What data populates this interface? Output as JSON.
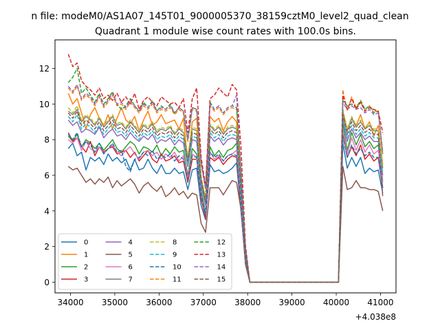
{
  "figure": {
    "suptitle": "n file: modeM0/AS1A07_145T01_9000005370_38159cztM0_level2_quad_clean",
    "offset_label": "+4.038e8"
  },
  "chart_data": {
    "type": "line",
    "title": "Quadrant 1 module wise count rates with 100.0s bins.",
    "xlabel": "",
    "ylabel": "",
    "xlim": [
      33650,
      41350
    ],
    "ylim": [
      -0.6,
      13.6
    ],
    "x_offset": "+4.038e8",
    "xticks": [
      34000,
      35000,
      36000,
      37000,
      38000,
      39000,
      40000,
      41000
    ],
    "xtick_labels": [
      "34000",
      "35000",
      "36000",
      "37000",
      "38000",
      "39000",
      "40000",
      "41000"
    ],
    "yticks": [
      0,
      2,
      4,
      6,
      8,
      10,
      12
    ],
    "ytick_labels": [
      "0",
      "2",
      "4",
      "6",
      "8",
      "10",
      "12"
    ],
    "grid": false,
    "legend": {
      "placement": "lower-left",
      "columns": 4
    },
    "x": [
      33950,
      34050,
      34150,
      34250,
      34350,
      34450,
      34550,
      34650,
      34750,
      34850,
      34950,
      35050,
      35150,
      35250,
      35350,
      35450,
      35550,
      35650,
      35750,
      35850,
      35950,
      36050,
      36150,
      36250,
      36350,
      36450,
      36550,
      36650,
      36750,
      36850,
      36950,
      37050,
      37150,
      37250,
      37350,
      37450,
      37550,
      37650,
      37750,
      37850,
      37950,
      38050,
      40050,
      40150,
      40250,
      40350,
      40450,
      40550,
      40650,
      40750,
      40850,
      40950,
      41050
    ],
    "series": [
      {
        "name": "0",
        "color": "#1f77b4",
        "dash": "solid",
        "values": [
          7.5,
          7.8,
          7.1,
          7.3,
          6.3,
          7.0,
          6.8,
          7.0,
          6.6,
          7.2,
          6.8,
          7.0,
          6.7,
          6.9,
          6.3,
          6.9,
          6.3,
          6.4,
          6.9,
          6.4,
          6.1,
          6.6,
          6.1,
          6.1,
          6.4,
          6.1,
          6.2,
          5.2,
          6.3,
          6.4,
          4.3,
          3.5,
          6.6,
          6.2,
          6.3,
          6.1,
          6.2,
          6.4,
          6.7,
          4.0,
          1.2,
          0,
          0,
          7.8,
          6.4,
          7.0,
          6.5,
          7.0,
          6.1,
          6.4,
          6.2,
          6.3,
          5.0
        ]
      },
      {
        "name": "1",
        "color": "#ff7f0e",
        "dash": "solid",
        "values": [
          10.6,
          10.0,
          10.3,
          9.5,
          8.6,
          9.4,
          9.8,
          9.2,
          8.8,
          9.4,
          8.6,
          9.2,
          9.8,
          9.1,
          8.9,
          9.3,
          8.5,
          9.1,
          9.6,
          8.8,
          9.0,
          9.4,
          8.9,
          9.0,
          9.1,
          8.6,
          9.2,
          6.8,
          9.0,
          9.2,
          5.8,
          4.7,
          9.3,
          9.0,
          9.2,
          8.5,
          9.0,
          9.3,
          9.0,
          5.8,
          1.8,
          0,
          0,
          9.4,
          8.5,
          9.2,
          8.8,
          9.4,
          8.6,
          9.0,
          8.2,
          8.8,
          6.6
        ]
      },
      {
        "name": "2",
        "color": "#2ca02c",
        "dash": "solid",
        "values": [
          8.2,
          7.9,
          8.3,
          7.6,
          8.0,
          7.8,
          7.5,
          7.8,
          7.4,
          7.7,
          8.0,
          7.5,
          7.3,
          7.6,
          7.9,
          7.7,
          7.2,
          7.6,
          7.5,
          7.3,
          7.7,
          7.1,
          7.5,
          7.2,
          7.6,
          7.3,
          7.4,
          6.0,
          7.5,
          7.2,
          5.1,
          3.9,
          7.6,
          7.1,
          7.4,
          7.0,
          7.4,
          7.5,
          7.8,
          4.7,
          1.4,
          0,
          0,
          8.9,
          7.4,
          8.4,
          7.7,
          8.3,
          7.6,
          7.9,
          7.5,
          7.7,
          5.7
        ]
      },
      {
        "name": "3",
        "color": "#d62728",
        "dash": "solid",
        "values": [
          8.4,
          7.9,
          8.1,
          7.6,
          7.3,
          7.9,
          7.1,
          7.6,
          7.3,
          7.5,
          7.6,
          7.2,
          7.3,
          7.4,
          7.0,
          7.3,
          6.8,
          7.1,
          7.4,
          6.9,
          6.7,
          7.2,
          6.8,
          6.9,
          7.1,
          6.7,
          6.8,
          5.6,
          6.9,
          6.9,
          4.7,
          3.6,
          7.0,
          6.8,
          7.0,
          6.6,
          6.9,
          7.1,
          7.0,
          4.2,
          1.3,
          0,
          0,
          8.4,
          7.0,
          7.6,
          7.1,
          7.7,
          6.9,
          7.2,
          6.8,
          7.0,
          5.3
        ]
      },
      {
        "name": "4",
        "color": "#9467bd",
        "dash": "solid",
        "values": [
          9.1,
          8.8,
          9.0,
          8.4,
          8.6,
          8.5,
          8.3,
          8.7,
          8.1,
          8.4,
          8.6,
          8.2,
          8.3,
          8.0,
          8.4,
          8.1,
          7.9,
          8.2,
          8.0,
          8.3,
          7.8,
          8.0,
          7.9,
          8.1,
          7.7,
          8.0,
          7.8,
          6.5,
          8.0,
          7.9,
          5.4,
          4.3,
          8.2,
          7.9,
          8.1,
          7.7,
          8.0,
          8.1,
          8.0,
          5.0,
          1.5,
          0,
          0,
          9.1,
          7.9,
          8.6,
          8.1,
          8.4,
          8.0,
          8.2,
          7.9,
          7.9,
          6.0
        ]
      },
      {
        "name": "5",
        "color": "#8c564b",
        "dash": "solid",
        "values": [
          6.5,
          6.3,
          6.4,
          6.0,
          5.6,
          5.8,
          5.5,
          5.8,
          5.6,
          5.9,
          5.3,
          5.7,
          5.4,
          5.6,
          5.8,
          5.5,
          5.0,
          5.4,
          5.6,
          5.3,
          5.1,
          5.4,
          4.8,
          5.0,
          5.3,
          4.9,
          5.1,
          4.7,
          5.0,
          4.9,
          3.3,
          2.8,
          5.3,
          5.3,
          5.3,
          4.9,
          5.3,
          5.7,
          5.6,
          4.1,
          1.0,
          0,
          0,
          6.5,
          5.2,
          5.3,
          5.7,
          5.3,
          5.3,
          5.2,
          5.2,
          5.1,
          4.0
        ]
      },
      {
        "name": "6",
        "color": "#e377c2",
        "dash": "solid",
        "values": [
          8.0,
          7.8,
          8.1,
          7.4,
          7.9,
          7.5,
          7.3,
          7.6,
          7.2,
          7.5,
          7.7,
          7.3,
          7.1,
          7.4,
          7.6,
          7.2,
          6.9,
          7.3,
          7.4,
          7.1,
          7.3,
          6.9,
          7.2,
          7.0,
          7.3,
          6.8,
          7.1,
          5.9,
          7.2,
          7.0,
          4.9,
          3.8,
          7.3,
          6.9,
          7.1,
          6.8,
          7.1,
          7.2,
          7.4,
          4.5,
          1.3,
          0,
          0,
          8.6,
          7.2,
          8.1,
          7.4,
          8.0,
          7.3,
          7.7,
          7.2,
          7.4,
          5.6
        ]
      },
      {
        "name": "7",
        "color": "#7f7f7f",
        "dash": "solid",
        "values": [
          9.6,
          9.4,
          9.7,
          9.0,
          9.3,
          9.1,
          8.8,
          9.2,
          8.7,
          9.0,
          9.3,
          8.8,
          8.9,
          8.6,
          9.0,
          8.7,
          8.4,
          8.8,
          8.6,
          8.9,
          8.4,
          8.6,
          8.5,
          8.7,
          8.3,
          8.6,
          8.4,
          7.0,
          8.6,
          8.5,
          5.8,
          4.6,
          8.8,
          8.5,
          8.7,
          8.3,
          8.6,
          8.7,
          8.6,
          5.4,
          1.6,
          0,
          0,
          9.6,
          8.5,
          9.2,
          8.7,
          9.0,
          8.6,
          8.8,
          8.5,
          8.5,
          6.4
        ]
      },
      {
        "name": "8",
        "color": "#bcbd22",
        "dash": "dashed",
        "values": [
          9.8,
          9.5,
          9.9,
          9.1,
          9.4,
          9.2,
          8.9,
          9.3,
          8.8,
          9.1,
          9.4,
          8.9,
          9.0,
          8.7,
          9.1,
          8.8,
          8.5,
          8.9,
          8.7,
          9.0,
          8.5,
          8.7,
          8.6,
          8.8,
          8.4,
          8.7,
          8.5,
          7.1,
          8.7,
          8.6,
          5.9,
          4.7,
          8.9,
          8.6,
          8.8,
          8.4,
          8.7,
          8.8,
          8.7,
          5.5,
          1.6,
          0,
          0,
          9.7,
          8.6,
          9.3,
          8.8,
          9.1,
          8.7,
          8.9,
          8.6,
          8.6,
          6.5
        ]
      },
      {
        "name": "9",
        "color": "#17becf",
        "dash": "dashed",
        "values": [
          9.3,
          9.0,
          9.4,
          8.6,
          8.9,
          8.7,
          8.4,
          8.8,
          8.3,
          8.6,
          8.9,
          8.4,
          8.5,
          8.2,
          8.6,
          8.3,
          8.0,
          8.4,
          8.2,
          8.5,
          8.0,
          8.2,
          8.1,
          8.3,
          7.9,
          8.2,
          8.0,
          6.6,
          8.2,
          8.1,
          5.6,
          4.4,
          8.4,
          8.1,
          8.3,
          7.9,
          8.2,
          8.3,
          8.2,
          5.2,
          1.5,
          0,
          0,
          9.2,
          8.1,
          8.8,
          8.3,
          8.6,
          8.2,
          8.4,
          8.1,
          8.1,
          6.1
        ]
      },
      {
        "name": "10",
        "color": "#1f77b4",
        "dash": "dashed",
        "values": [
          8.3,
          8.0,
          8.4,
          7.6,
          7.9,
          7.7,
          7.3,
          7.8,
          7.2,
          7.5,
          7.8,
          7.3,
          7.4,
          6.5,
          6.2,
          6.9,
          7.0,
          7.3,
          7.1,
          7.4,
          6.9,
          7.1,
          7.0,
          7.2,
          6.8,
          7.1,
          6.9,
          5.8,
          7.1,
          7.0,
          4.9,
          3.8,
          7.3,
          7.0,
          7.2,
          6.8,
          7.1,
          7.2,
          7.1,
          4.5,
          1.3,
          0,
          0,
          8.2,
          7.0,
          7.7,
          7.2,
          7.5,
          7.1,
          7.3,
          7.0,
          7.0,
          5.3
        ]
      },
      {
        "name": "11",
        "color": "#ff7f0e",
        "dash": "dashed",
        "values": [
          10.9,
          10.6,
          11.0,
          10.2,
          10.5,
          10.3,
          9.9,
          10.4,
          9.8,
          10.1,
          10.5,
          9.9,
          10.0,
          9.7,
          10.1,
          9.8,
          9.5,
          9.9,
          9.7,
          10.0,
          9.5,
          9.7,
          9.6,
          9.8,
          9.4,
          9.7,
          9.5,
          7.9,
          9.7,
          9.6,
          6.6,
          5.2,
          9.9,
          9.6,
          9.8,
          9.4,
          9.7,
          9.8,
          9.7,
          6.1,
          1.8,
          0,
          0,
          10.8,
          9.6,
          10.4,
          9.8,
          10.1,
          9.7,
          9.9,
          9.6,
          9.6,
          7.2
        ]
      },
      {
        "name": "12",
        "color": "#2ca02c",
        "dash": "dashed",
        "values": [
          11.2,
          11.5,
          12.0,
          10.6,
          10.9,
          10.5,
          10.1,
          10.6,
          10.0,
          10.3,
          10.7,
          10.0,
          9.7,
          9.9,
          10.3,
          9.9,
          9.6,
          10.1,
          9.8,
          10.2,
          9.6,
          9.9,
          9.7,
          10.0,
          9.5,
          9.8,
          9.6,
          8.0,
          9.8,
          9.7,
          6.8,
          5.3,
          10.1,
          9.7,
          9.9,
          9.5,
          9.8,
          9.9,
          9.8,
          6.2,
          1.9,
          0,
          0,
          10.2,
          9.9,
          10.0,
          9.8,
          10.2,
          9.7,
          9.9,
          9.5,
          9.6,
          7.3
        ]
      },
      {
        "name": "13",
        "color": "#d62728",
        "dash": "dashed",
        "values": [
          12.8,
          12.1,
          12.3,
          11.3,
          11.0,
          10.8,
          10.5,
          10.9,
          10.3,
          10.5,
          10.2,
          10.6,
          10.1,
          10.4,
          10.0,
          10.6,
          9.7,
          10.2,
          10.4,
          10.1,
          9.9,
          10.4,
          10.2,
          10.0,
          10.1,
          9.8,
          10.3,
          8.4,
          10.3,
          10.9,
          7.0,
          5.4,
          10.3,
          10.5,
          10.9,
          10.6,
          10.4,
          11.1,
          10.8,
          7.6,
          2.1,
          0,
          0,
          10.5,
          9.7,
          10.3,
          9.7,
          10.1,
          9.6,
          9.8,
          9.7,
          9.6,
          8.4
        ]
      },
      {
        "name": "14",
        "color": "#9467bd",
        "dash": "dashed",
        "values": [
          11.0,
          10.7,
          11.1,
          10.3,
          10.6,
          10.4,
          10.0,
          10.5,
          9.9,
          10.2,
          10.6,
          10.0,
          10.1,
          9.8,
          10.2,
          9.9,
          9.6,
          10.0,
          9.8,
          10.1,
          9.6,
          9.8,
          9.7,
          9.9,
          9.5,
          9.8,
          9.6,
          8.0,
          9.8,
          9.7,
          6.7,
          5.3,
          10.0,
          9.7,
          9.9,
          9.5,
          9.8,
          9.9,
          10.5,
          6.2,
          1.8,
          0,
          0,
          10.1,
          9.7,
          9.9,
          9.7,
          9.8,
          9.5,
          9.7,
          9.4,
          9.5,
          7.2
        ]
      },
      {
        "name": "15",
        "color": "#8c564b",
        "dash": "dashed",
        "values": [
          9.5,
          9.2,
          9.6,
          8.8,
          9.1,
          8.9,
          8.6,
          9.0,
          8.5,
          8.8,
          9.1,
          8.6,
          8.7,
          8.4,
          8.8,
          8.5,
          8.2,
          8.6,
          8.4,
          8.7,
          8.2,
          8.4,
          8.3,
          8.5,
          8.1,
          8.4,
          8.2,
          6.8,
          8.4,
          8.3,
          5.7,
          4.5,
          8.6,
          8.3,
          8.5,
          8.1,
          8.4,
          8.5,
          8.4,
          5.3,
          1.6,
          0,
          0,
          9.4,
          8.3,
          9.0,
          8.5,
          8.8,
          8.4,
          8.6,
          8.3,
          8.3,
          4.8
        ]
      }
    ]
  }
}
